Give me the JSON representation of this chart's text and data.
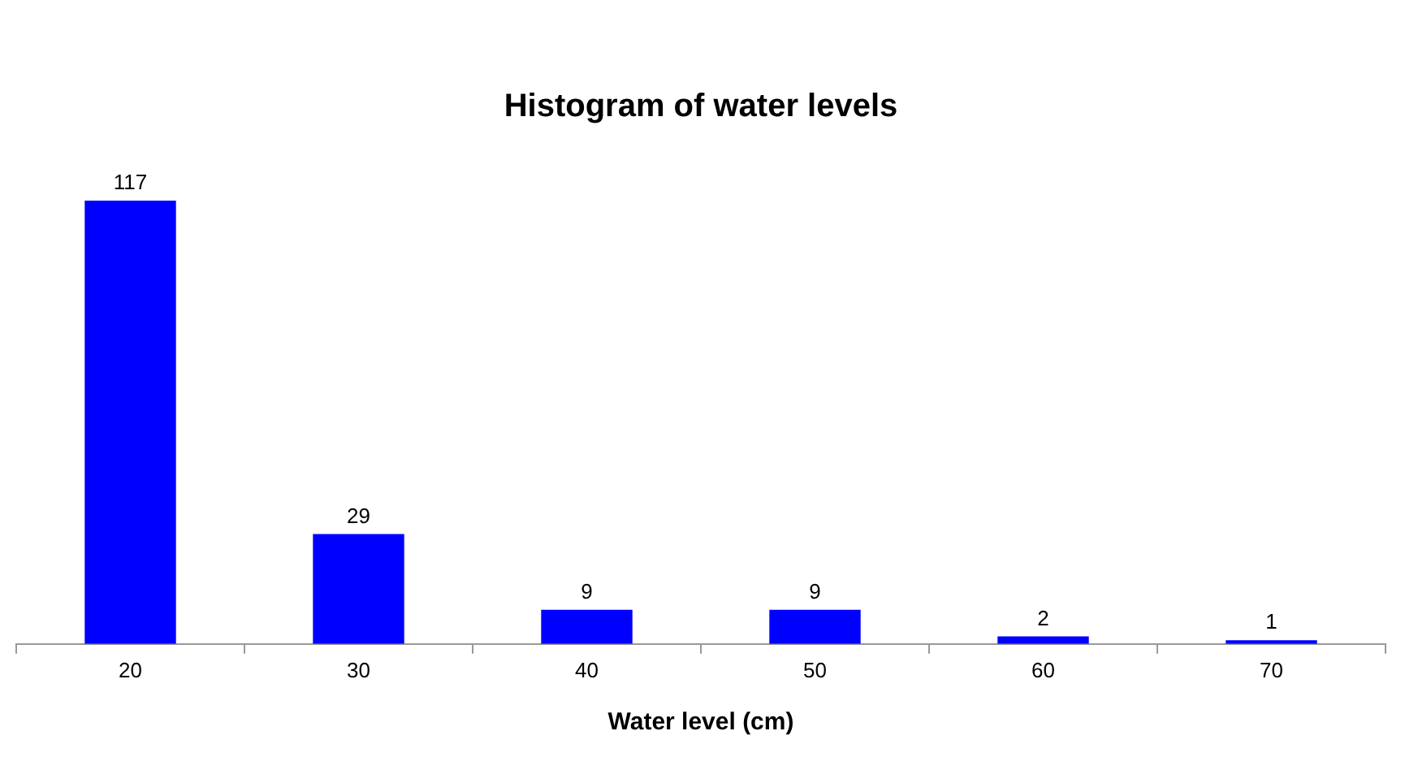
{
  "chart_data": {
    "type": "bar",
    "title": "Histogram of water levels",
    "xlabel": "Water level (cm)",
    "categories": [
      "20",
      "30",
      "40",
      "50",
      "60",
      "70"
    ],
    "values": [
      117,
      29,
      9,
      9,
      2,
      1
    ],
    "color": "#0000ff",
    "data_labels": true,
    "legend": false
  }
}
